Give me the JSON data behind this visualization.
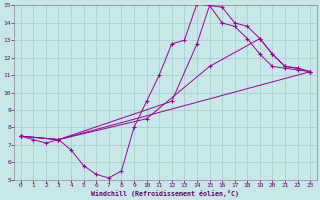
{
  "xlabel": "Windchill (Refroidissement éolien,°C)",
  "background_color": "#c8e8e8",
  "grid_color": "#a8c8cc",
  "line_color": "#990099",
  "xlim": [
    -0.5,
    23.5
  ],
  "ylim": [
    5,
    15
  ],
  "xticks": [
    0,
    1,
    2,
    3,
    4,
    5,
    6,
    7,
    8,
    9,
    10,
    11,
    12,
    13,
    14,
    15,
    16,
    17,
    18,
    19,
    20,
    21,
    22,
    23
  ],
  "yticks": [
    5,
    6,
    7,
    8,
    9,
    10,
    11,
    12,
    13,
    14,
    15
  ],
  "series": [
    {
      "x": [
        0,
        1,
        2,
        3,
        4,
        5,
        6,
        7,
        8,
        9,
        10,
        11,
        12,
        13,
        14,
        15,
        16,
        17,
        18,
        19,
        20,
        21,
        22,
        23
      ],
      "y": [
        7.5,
        7.3,
        7.1,
        7.3,
        6.7,
        5.8,
        5.3,
        5.1,
        5.5,
        8.0,
        9.5,
        11.0,
        12.8,
        13.0,
        15.1,
        15.0,
        14.0,
        13.8,
        13.1,
        12.2,
        11.5,
        11.4,
        11.3,
        11.2
      ]
    },
    {
      "x": [
        0,
        3,
        23
      ],
      "y": [
        7.5,
        7.3,
        11.2
      ]
    },
    {
      "x": [
        0,
        3,
        10,
        15,
        19,
        20,
        21,
        22,
        23
      ],
      "y": [
        7.5,
        7.3,
        8.5,
        11.5,
        13.1,
        12.2,
        11.5,
        11.4,
        11.2
      ]
    },
    {
      "x": [
        0,
        3,
        12,
        14,
        15,
        16,
        17,
        18,
        19,
        20,
        21,
        22,
        23
      ],
      "y": [
        7.5,
        7.3,
        9.5,
        12.8,
        15.0,
        14.9,
        14.0,
        13.8,
        13.1,
        12.2,
        11.5,
        11.4,
        11.2
      ]
    }
  ]
}
